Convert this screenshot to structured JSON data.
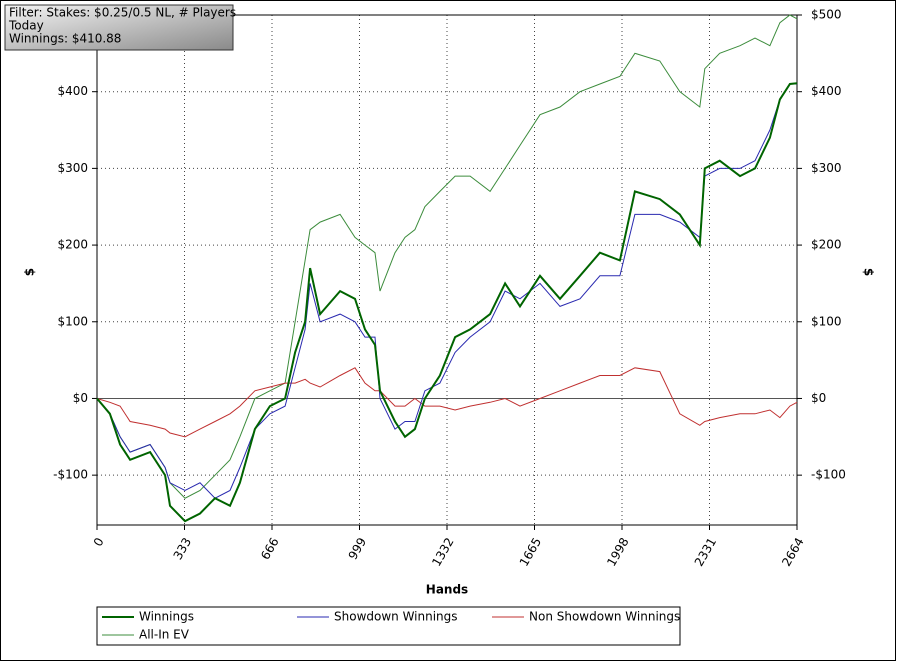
{
  "chart_data": {
    "type": "line",
    "annotations": [
      "Filter: Stakes: $0.25/0.5 NL, # Players",
      "Today",
      "Winnings: $410.88"
    ],
    "xlabel": "Hands",
    "ylabel": "$",
    "x": [
      0,
      49,
      88,
      126,
      202,
      259,
      278,
      335,
      392,
      449,
      506,
      544,
      601,
      658,
      716,
      754,
      792,
      811,
      849,
      925,
      982,
      1020,
      1058,
      1077,
      1134,
      1172,
      1210,
      1248,
      1305,
      1363,
      1420,
      1496,
      1553,
      1610,
      1686,
      1762,
      1838,
      1914,
      1990,
      2047,
      2142,
      2218,
      2294,
      2313,
      2370,
      2447,
      2504,
      2561,
      2599,
      2637,
      2664
    ],
    "series": [
      {
        "name": "Winnings",
        "color": "#006400",
        "values": [
          0,
          -20,
          -60,
          -80,
          -70,
          -100,
          -140,
          -160,
          -150,
          -130,
          -140,
          -110,
          -40,
          -10,
          0,
          60,
          100,
          170,
          110,
          140,
          130,
          90,
          70,
          10,
          -30,
          -50,
          -40,
          0,
          30,
          80,
          90,
          110,
          150,
          120,
          160,
          130,
          160,
          190,
          180,
          270,
          260,
          240,
          200,
          300,
          310,
          290,
          300,
          340,
          390,
          410,
          410.88
        ]
      },
      {
        "name": "Showdown Winnings",
        "color": "#2a2ab0",
        "values": [
          0,
          -20,
          -50,
          -70,
          -60,
          -90,
          -110,
          -120,
          -110,
          -130,
          -120,
          -90,
          -40,
          -20,
          -10,
          40,
          90,
          150,
          100,
          110,
          100,
          80,
          80,
          0,
          -40,
          -30,
          -30,
          10,
          20,
          60,
          80,
          100,
          140,
          130,
          150,
          120,
          130,
          160,
          160,
          240,
          240,
          230,
          210,
          290,
          300,
          300,
          310,
          350,
          390,
          410,
          410
        ]
      },
      {
        "name": "Non Showdown Winnings",
        "color": "#c03030",
        "values": [
          0,
          -5,
          -10,
          -30,
          -35,
          -40,
          -45,
          -50,
          -40,
          -30,
          -20,
          -10,
          10,
          15,
          20,
          20,
          25,
          20,
          15,
          30,
          40,
          20,
          10,
          10,
          -10,
          -10,
          0,
          -10,
          -10,
          -15,
          -10,
          -5,
          0,
          -10,
          0,
          10,
          20,
          30,
          30,
          40,
          35,
          -20,
          -35,
          -30,
          -25,
          -20,
          -20,
          -15,
          -25,
          -10,
          -5
        ]
      },
      {
        "name": "All-In EV",
        "color": "#3c8c3c",
        "values": [
          0,
          -20,
          -50,
          -70,
          -60,
          -90,
          -110,
          -130,
          -120,
          -100,
          -80,
          -50,
          0,
          10,
          20,
          100,
          180,
          220,
          230,
          240,
          210,
          200,
          190,
          140,
          190,
          210,
          220,
          250,
          270,
          290,
          290,
          270,
          300,
          330,
          370,
          380,
          400,
          410,
          420,
          450,
          440,
          400,
          380,
          430,
          450,
          460,
          470,
          460,
          490,
          500,
          495
        ]
      }
    ],
    "xlim": [
      0,
      2664
    ],
    "xticks": [
      0,
      333,
      666,
      999,
      1332,
      1665,
      1998,
      2331,
      2664
    ],
    "ylim": [
      -165,
      500
    ],
    "yticks": [
      {
        "value": -100,
        "label": "-$100"
      },
      {
        "value": 0,
        "label": "$0"
      },
      {
        "value": 100,
        "label": "$100"
      },
      {
        "value": 200,
        "label": "$200"
      },
      {
        "value": 300,
        "label": "$300"
      },
      {
        "value": 400,
        "label": "$400"
      },
      {
        "value": 500,
        "label": "$500"
      }
    ],
    "grid": true,
    "legend": "bottom"
  }
}
